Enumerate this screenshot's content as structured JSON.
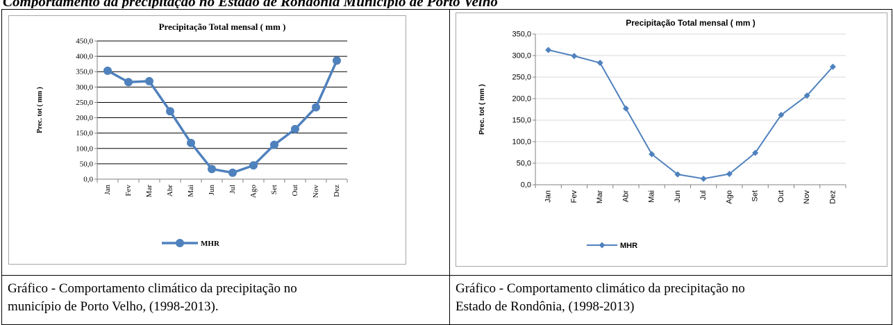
{
  "page_heading": "Comportamento da precipitação no Estado de Rondônia Município de Porto Velho",
  "captions": [
    {
      "line1": "Gráfico - Comportamento climático da precipitação no",
      "line2": "município de Porto Velho, (1998-2013)."
    },
    {
      "line1": "Gráfico - Comportamento climático da precipitação no",
      "line2": "Estado de Rondônia, (1998-2013)"
    }
  ],
  "chart_data": [
    {
      "type": "line",
      "title": "Precipitação Total mensal ( mm )",
      "ylabel": "Prec. tot ( mm )",
      "xlabel": "",
      "ylim": [
        0,
        450
      ],
      "yticks": [
        "0,0",
        "50,0",
        "100,0",
        "150,0",
        "200,0",
        "250,0",
        "300,0",
        "350,0",
        "400,0",
        "450,0"
      ],
      "categories": [
        "Jan",
        "Fev",
        "Mar",
        "Abr",
        "Mai",
        "Jun",
        "Jul",
        "Ago",
        "Set",
        "Out",
        "Nov",
        "Dez"
      ],
      "series": [
        {
          "name": "MHR",
          "values": [
            353,
            316,
            319,
            221,
            118,
            33,
            21,
            45,
            112,
            163,
            234,
            386
          ]
        }
      ],
      "legend_position": "bottom",
      "grid": true,
      "color": "#4f81bd"
    },
    {
      "type": "line",
      "title": "Precipitação Total mensal ( mm )",
      "ylabel": "Prec. tot ( mm )",
      "xlabel": "",
      "ylim": [
        0,
        350
      ],
      "yticks": [
        "0,0",
        "50,0",
        "100,0",
        "150,0",
        "200,0",
        "250,0",
        "300,0",
        "350,0"
      ],
      "categories": [
        "Jan",
        "Fev",
        "Mar",
        "Abr",
        "Mai",
        "Jun",
        "Jul",
        "Ago",
        "Set",
        "Out",
        "Nov",
        "Dez"
      ],
      "series": [
        {
          "name": "MHR",
          "values": [
            313,
            299,
            283,
            177,
            71,
            24,
            14,
            25,
            74,
            162,
            207,
            274
          ]
        }
      ],
      "legend_position": "bottom",
      "grid": true,
      "color": "#4f81bd"
    }
  ]
}
